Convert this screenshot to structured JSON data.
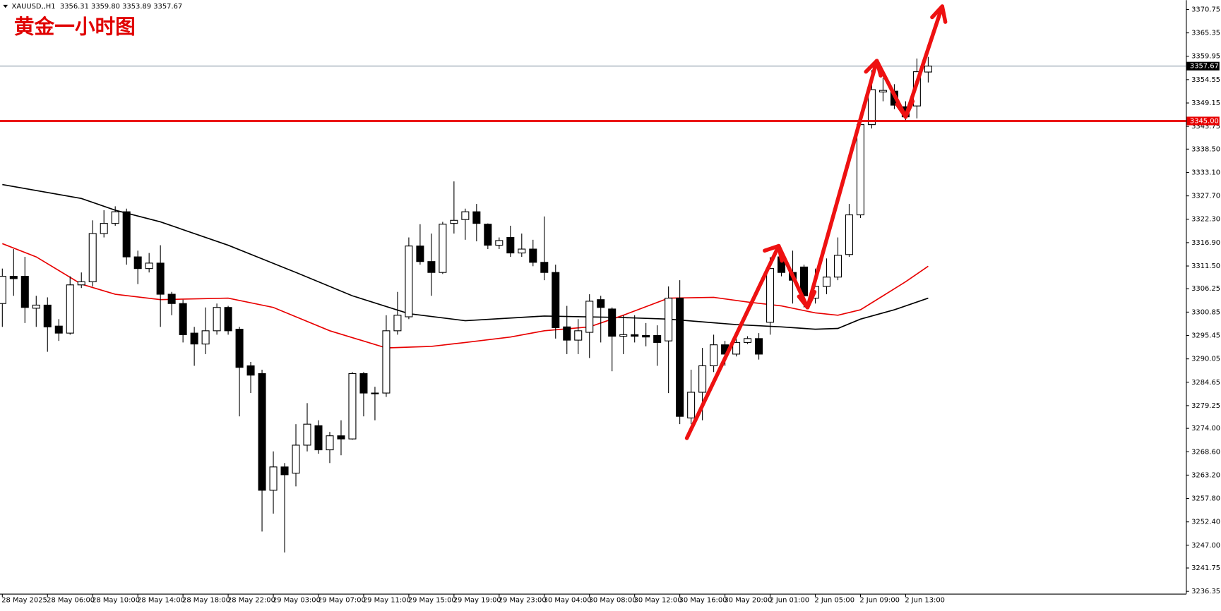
{
  "chart_data": {
    "type": "candlestick",
    "symbol": "XAUUSD,,H1",
    "ohlc_text": "3356.31 3359.80 3353.89 3357.67",
    "title": "黄金一小时图",
    "up_color": "#ffffff",
    "down_color": "#000000",
    "categories": [
      "28 May 2025",
      null,
      null,
      null,
      "28 May 06:00",
      null,
      null,
      null,
      "28 May 10:00",
      null,
      null,
      null,
      "28 May 14:00",
      null,
      null,
      null,
      "28 May 18:00",
      null,
      null,
      null,
      "28 May 22:00",
      null,
      null,
      null,
      "29 May 03:00",
      null,
      null,
      null,
      "29 May 07:00",
      null,
      null,
      null,
      "29 May 11:00",
      null,
      null,
      null,
      "29 May 15:00",
      null,
      null,
      null,
      "29 May 19:00",
      null,
      null,
      null,
      "29 May 23:00",
      null,
      null,
      null,
      "30 May 04:00",
      null,
      null,
      null,
      "30 May 08:00",
      null,
      null,
      null,
      "30 May 12:00",
      null,
      null,
      null,
      "30 May 16:00",
      null,
      null,
      null,
      "30 May 20:00",
      null,
      null,
      null,
      "2 Jun 01:00",
      null,
      null,
      null,
      "2 Jun 05:00",
      null,
      null,
      null,
      "2 Jun 09:00",
      null,
      null,
      null,
      "2 Jun 13:00",
      null,
      null
    ],
    "open": [
      3302.83,
      3309.12,
      3309.12,
      3301.75,
      3302.47,
      3297.62,
      3296.0,
      3307.14,
      3307.86,
      3319.0,
      3321.34,
      3324.03,
      3313.61,
      3310.91,
      3312.17,
      3304.98,
      3302.83,
      3296.0,
      3293.48,
      3296.54,
      3301.93,
      3296.9,
      3288.45,
      3286.65,
      3259.7,
      3265.09,
      3263.65,
      3270.12,
      3274.61,
      3269.04,
      3272.28,
      3271.56,
      3286.65,
      3281.98,
      3282.16,
      3296.54,
      3299.77,
      3316.12,
      3312.53,
      3310.01,
      3321.34,
      3322.23,
      3324.03,
      3321.16,
      3316.3,
      3318.1,
      3314.51,
      3315.41,
      3312.35,
      3310.01,
      3297.44,
      3294.38,
      3296.18,
      3303.73,
      3301.57,
      3295.28,
      3295.64,
      3295.46,
      3295.46,
      3294.2,
      3304.08,
      3276.41,
      3282.34,
      3288.45,
      3293.3,
      3291.15,
      3293.84,
      3294.74,
      3298.51,
      3313.61,
      3310.01,
      3311.27,
      3304.08,
      3306.78,
      3308.94,
      3314.15,
      3323.31,
      3344.16,
      3351.71,
      3351.89,
      3348.29,
      3348.47,
      3356.31
    ],
    "high": [
      3310.91,
      3315.41,
      3313.61,
      3304.62,
      3304.26,
      3299.23,
      3309.12,
      3310.01,
      3322.05,
      3324.39,
      3325.29,
      3324.75,
      3315.05,
      3314.51,
      3316.3,
      3305.52,
      3303.73,
      3297.44,
      3301.93,
      3302.83,
      3302.29,
      3297.44,
      3289.35,
      3287.55,
      3268.68,
      3265.99,
      3274.97,
      3279.83,
      3275.87,
      3273.18,
      3275.87,
      3287.01,
      3287.01,
      3283.6,
      3300.13,
      3305.52,
      3318.1,
      3321.16,
      3319.0,
      3321.7,
      3331.04,
      3324.75,
      3325.83,
      3321.34,
      3318.1,
      3320.8,
      3319.0,
      3317.56,
      3322.95,
      3311.81,
      3302.29,
      3299.23,
      3304.98,
      3304.62,
      3301.93,
      3300.13,
      3300.13,
      3298.33,
      3297.8,
      3306.78,
      3308.22,
      3287.55,
      3292.58,
      3295.64,
      3294.2,
      3294.74,
      3295.28,
      3296.0,
      3313.61,
      3315.41,
      3315.05,
      3311.81,
      3310.91,
      3313.25,
      3318.1,
      3325.83,
      3345.95,
      3356.74,
      3354.94,
      3353.5,
      3349.55,
      3359.43,
      3359.8
    ],
    "low": [
      3297.44,
      3304.62,
      3298.33,
      3297.44,
      3291.69,
      3294.2,
      3295.64,
      3306.42,
      3306.78,
      3318.1,
      3320.8,
      3311.81,
      3307.32,
      3310.01,
      3297.44,
      3300.13,
      3293.84,
      3288.45,
      3291.15,
      3295.64,
      3295.64,
      3276.77,
      3282.16,
      3250.17,
      3254.31,
      3245.32,
      3260.6,
      3268.68,
      3268.14,
      3265.99,
      3267.79,
      3271.38,
      3276.77,
      3275.87,
      3281.26,
      3295.64,
      3299.23,
      3311.81,
      3304.62,
      3309.66,
      3319.0,
      3317.56,
      3317.2,
      3315.41,
      3315.41,
      3313.61,
      3313.61,
      3311.45,
      3308.22,
      3294.74,
      3291.15,
      3291.15,
      3290.25,
      3293.84,
      3287.19,
      3291.15,
      3293.84,
      3292.94,
      3288.45,
      3282.16,
      3274.97,
      3274.97,
      3275.87,
      3287.01,
      3288.45,
      3290.61,
      3293.48,
      3289.89,
      3295.64,
      3309.12,
      3302.83,
      3301.93,
      3302.83,
      3304.98,
      3308.22,
      3313.61,
      3322.59,
      3343.26,
      3349.55,
      3347.75,
      3345.06,
      3345.6,
      3353.89
    ],
    "close": [
      3309.12,
      3308.58,
      3301.93,
      3302.47,
      3297.44,
      3296.0,
      3307.14,
      3307.86,
      3319.0,
      3321.34,
      3324.03,
      3313.61,
      3310.91,
      3312.17,
      3304.98,
      3302.83,
      3295.64,
      3293.48,
      3296.54,
      3301.93,
      3296.54,
      3288.09,
      3286.29,
      3259.7,
      3265.09,
      3263.29,
      3270.12,
      3274.97,
      3269.04,
      3272.28,
      3271.56,
      3286.65,
      3282.16,
      3282.16,
      3296.54,
      3300.13,
      3316.12,
      3312.53,
      3310.01,
      3321.16,
      3322.05,
      3324.03,
      3321.34,
      3316.3,
      3317.38,
      3314.51,
      3315.41,
      3312.35,
      3310.01,
      3297.26,
      3294.38,
      3296.54,
      3303.37,
      3301.93,
      3295.28,
      3295.64,
      3295.28,
      3295.1,
      3293.84,
      3304.08,
      3276.77,
      3282.34,
      3288.45,
      3293.3,
      3291.15,
      3293.84,
      3294.74,
      3291.15,
      3310.91,
      3310.01,
      3308.22,
      3304.62,
      3306.78,
      3308.94,
      3313.97,
      3323.31,
      3344.16,
      3352.24,
      3352.06,
      3348.65,
      3345.95,
      3356.38,
      3357.67
    ],
    "ma": [
      {
        "color": "#000000",
        "x": [
          0,
          7,
          10,
          14,
          20,
          26,
          31,
          36,
          41,
          48,
          55,
          59,
          65,
          69,
          72,
          74,
          76,
          79,
          82
        ],
        "values": [
          3330.32,
          3327.09,
          3324.39,
          3321.7,
          3316.3,
          3310.01,
          3304.62,
          3300.49,
          3298.87,
          3299.95,
          3299.59,
          3299.23,
          3297.97,
          3297.44,
          3296.9,
          3297.08,
          3299.23,
          3301.39,
          3304.08
        ]
      },
      {
        "color": "#e80000",
        "x": [
          0,
          3,
          7,
          10,
          14,
          20,
          24,
          29,
          34,
          38,
          41,
          45,
          48,
          52,
          55,
          59,
          63,
          66,
          69,
          72,
          74,
          76,
          78,
          80,
          82
        ],
        "values": [
          3316.67,
          3313.61,
          3307.32,
          3304.98,
          3303.73,
          3304.08,
          3301.93,
          3296.54,
          3292.58,
          3292.94,
          3293.84,
          3295.1,
          3296.54,
          3297.44,
          3300.13,
          3304.08,
          3304.26,
          3303.19,
          3302.29,
          3300.67,
          3300.13,
          3301.39,
          3304.62,
          3307.86,
          3311.45
        ]
      }
    ],
    "level": {
      "value": 3345,
      "label": "3345.00",
      "color": "#e80000"
    },
    "price_line": {
      "value": 3357.67,
      "label": "3357.67",
      "color": "#8a9aa8"
    },
    "ylim": [
      3235.8,
      3372.91
    ],
    "yticks": [
      3370.75,
      3365.35,
      3359.95,
      3354.55,
      3349.15,
      3343.75,
      {
        "value": 3338.5,
        "label": "3338.50"
      },
      {
        "value": 3333.1,
        "label": "3333.10"
      },
      {
        "value": 3327.7,
        "label": "3327.70"
      },
      {
        "value": 3322.3,
        "label": "3322.30"
      },
      {
        "value": 3316.9,
        "label": "3316.90"
      },
      {
        "value": 3311.5,
        "label": "3311.50"
      },
      3306.25,
      3300.85,
      3295.45,
      3290.05,
      3284.65,
      3279.25,
      {
        "value": 3274,
        "label": "3274.00"
      },
      {
        "value": 3268.6,
        "label": "3268.60"
      },
      {
        "value": 3263.2,
        "label": "3263.20"
      },
      {
        "value": 3257.8,
        "label": "3257.80"
      },
      {
        "value": 3252.4,
        "label": "3252.40"
      },
      {
        "value": 3247,
        "label": "3247.00"
      },
      3241.75,
      3236.35
    ]
  }
}
